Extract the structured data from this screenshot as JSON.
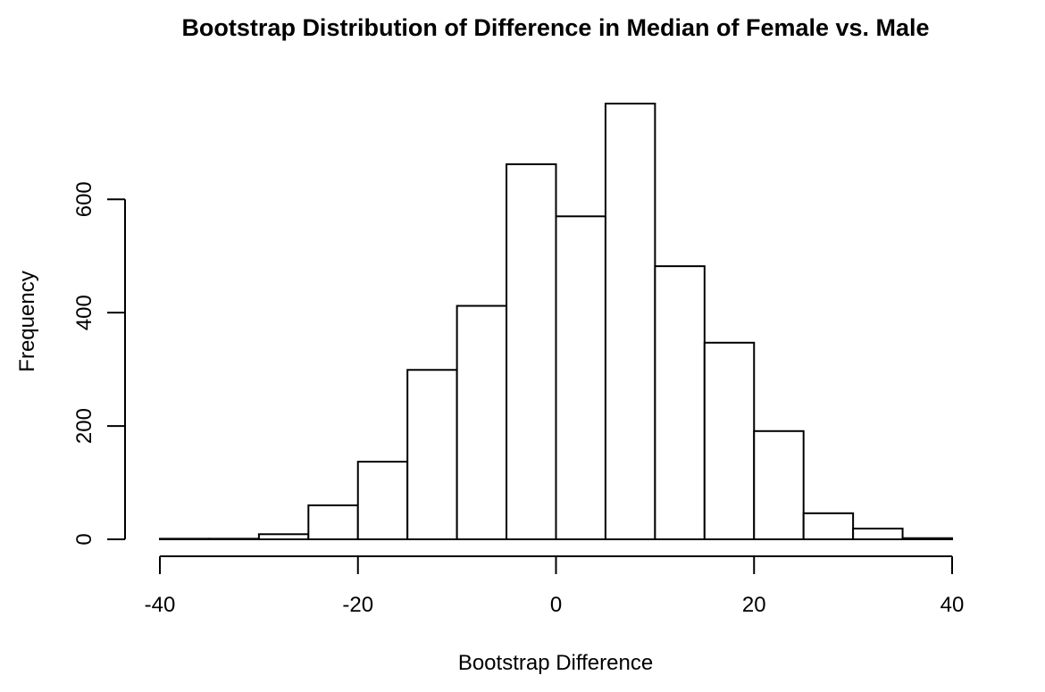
{
  "chart_data": {
    "type": "bar",
    "title": "Bootstrap Distribution of Difference in Median of Female vs. Male",
    "xlabel": "Bootstrap Difference",
    "ylabel": "Frequency",
    "bin_edges": [
      -40,
      -35,
      -30,
      -25,
      -20,
      -15,
      -10,
      -5,
      0,
      5,
      10,
      15,
      20,
      25,
      30,
      35,
      40
    ],
    "values": [
      1,
      1,
      9,
      60,
      137,
      299,
      412,
      662,
      570,
      769,
      482,
      347,
      191,
      46,
      19,
      2
    ],
    "xlim": [
      -40,
      40
    ],
    "ylim": [
      0,
      769
    ],
    "x_ticks": [
      -40,
      -20,
      0,
      20,
      40
    ],
    "y_ticks": [
      0,
      200,
      400,
      600
    ],
    "grid": false,
    "legend": "none"
  },
  "colors": {
    "bar_fill": "#ffffff",
    "bar_stroke": "#000000",
    "background": "#ffffff"
  }
}
